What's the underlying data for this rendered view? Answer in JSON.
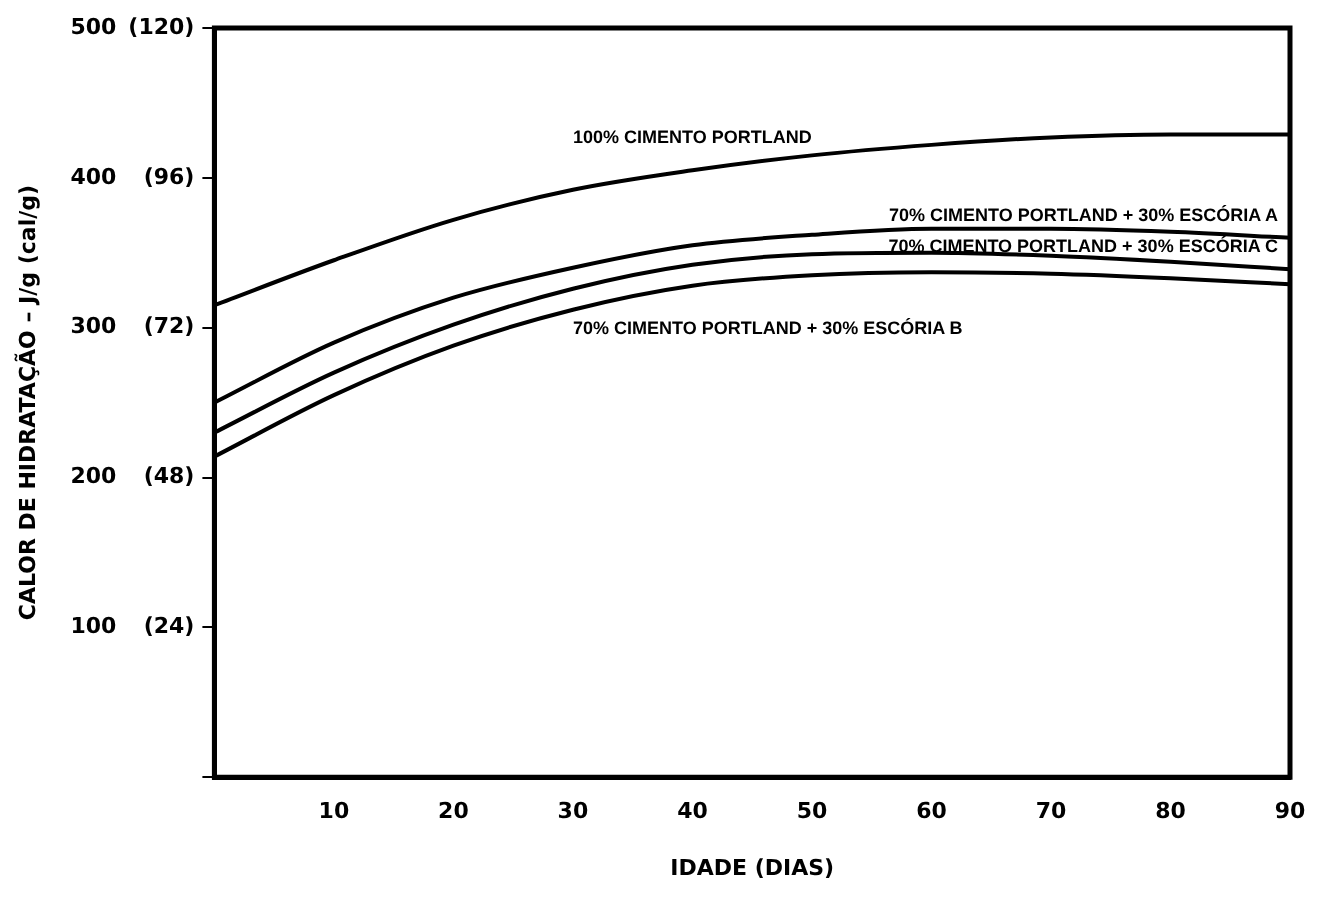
{
  "chart_data": {
    "type": "line",
    "xlabel": "IDADE (DIAS)",
    "ylabel": "CALOR DE HIDRATAÇÃO – J/g (cal/g)",
    "xlim": [
      0,
      90
    ],
    "xticks": [
      {
        "value": 0,
        "label": null
      },
      10,
      20,
      30,
      40,
      50,
      60,
      70,
      80,
      90
    ],
    "ylim": [
      0,
      500
    ],
    "yticks": [
      {
        "value": 0,
        "label": null
      },
      100,
      200,
      300,
      400,
      500
    ],
    "y2lim": [
      0,
      120
    ],
    "y2ticks": [
      {
        "value": 24,
        "label": "(24)"
      },
      {
        "value": 48,
        "label": "(48)"
      },
      {
        "value": 72,
        "label": "(72)"
      },
      {
        "value": 96,
        "label": "(96)"
      },
      {
        "value": 120,
        "label": "(120)"
      }
    ],
    "x": [
      0,
      10,
      20,
      30,
      40,
      50,
      60,
      70,
      80,
      90
    ],
    "series": [
      {
        "name": "100% CIMENTO PORTLAND",
        "color": "#000000",
        "values": [
          315,
          345,
          372,
          392,
          405,
          415,
          422,
          427,
          429,
          429
        ]
      },
      {
        "name": "70% CIMENTO PORTLAND + 30% ESCÓRIA A",
        "color": "#000000",
        "values": [
          250,
          290,
          320,
          340,
          355,
          362,
          366,
          366,
          364,
          360
        ]
      },
      {
        "name": "70% CIMENTO PORTLAND + 30% ESCÓRIA C",
        "color": "#000000",
        "values": [
          230,
          270,
          302,
          326,
          342,
          349,
          350,
          348,
          344,
          339
        ]
      },
      {
        "name": "70% CIMENTO PORTLAND + 30% ESCÓRIA B",
        "color": "#000000",
        "values": [
          214,
          255,
          288,
          312,
          328,
          335,
          337,
          336,
          333,
          329
        ]
      }
    ],
    "grid": false,
    "legend": false,
    "marker": "none",
    "line_style": "solid"
  }
}
